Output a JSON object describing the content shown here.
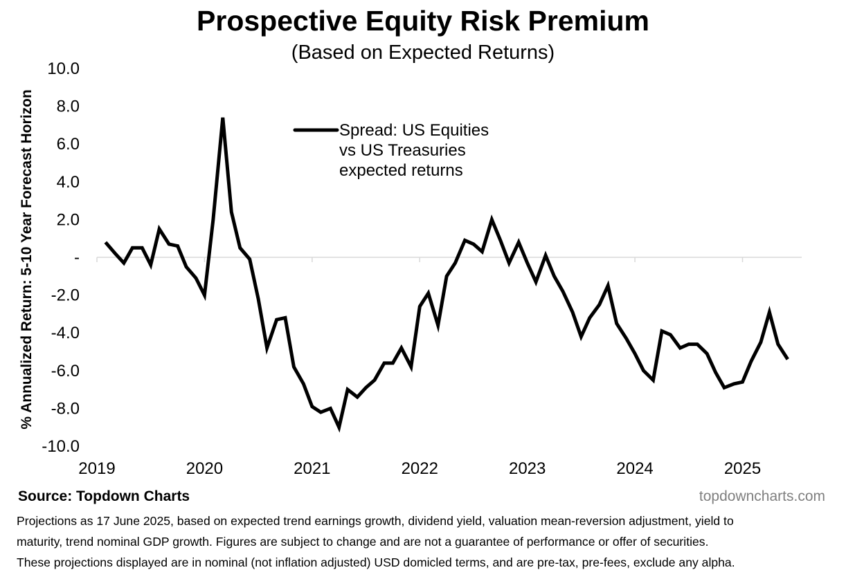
{
  "title": "Prospective Equity Risk Premium",
  "subtitle": "(Based on Expected Returns)",
  "source": "Source: Topdown Charts",
  "brand": "topdowncharts.com",
  "footnote": [
    "Projections as 17 June 2025, based on expected trend earnings growth, dividend yield, valuation mean-reversion adjustment, yield to",
    "maturity, trend nominal GDP growth.  Figures are subject to change and are not a guarantee of performance or offer of securities.",
    "These projections displayed are in nominal (not inflation adjusted) USD domicled terms, and are pre-tax, pre-fees, exclude any alpha."
  ],
  "colors": {
    "line": "#000000",
    "gridline": "#d9d9d9",
    "brand": "#7f7f7f"
  },
  "chart_data": {
    "type": "line",
    "title": "Prospective Equity Risk Premium",
    "subtitle": "(Based on Expected Returns)",
    "ylabel": "% Annualized Return: 5-10 Year Forecast Horizon",
    "xlabel": "",
    "ylim": [
      -10,
      10
    ],
    "xlim": [
      2019,
      2025.55
    ],
    "yticks": [
      10,
      8,
      6,
      4,
      2,
      0,
      -2,
      -4,
      -6,
      -8,
      -10
    ],
    "ytick_labels": [
      "10.0",
      "8.0",
      "6.0",
      "4.0",
      "2.0",
      "-",
      "-2.0",
      "-4.0",
      "-6.0",
      "-8.0",
      "-10.0"
    ],
    "xticks": [
      2019,
      2020,
      2021,
      2022,
      2023,
      2024,
      2025
    ],
    "xtick_labels": [
      "2019",
      "2020",
      "2021",
      "2022",
      "2023",
      "2024",
      "2025"
    ],
    "legend_position": "top-center",
    "grid": "zero line only",
    "series": [
      {
        "name": "Spread: US Equities\nvs US Treasuries\nexpected returns",
        "x": [
          2019.08,
          2019.17,
          2019.25,
          2019.33,
          2019.42,
          2019.5,
          2019.58,
          2019.67,
          2019.75,
          2019.83,
          2019.92,
          2020.0,
          2020.08,
          2020.17,
          2020.25,
          2020.33,
          2020.42,
          2020.5,
          2020.58,
          2020.67,
          2020.75,
          2020.83,
          2020.92,
          2021.0,
          2021.08,
          2021.17,
          2021.25,
          2021.33,
          2021.42,
          2021.5,
          2021.58,
          2021.67,
          2021.75,
          2021.83,
          2021.92,
          2022.0,
          2022.08,
          2022.17,
          2022.25,
          2022.33,
          2022.42,
          2022.5,
          2022.58,
          2022.67,
          2022.75,
          2022.83,
          2022.92,
          2023.0,
          2023.08,
          2023.17,
          2023.25,
          2023.33,
          2023.42,
          2023.5,
          2023.58,
          2023.67,
          2023.75,
          2023.83,
          2023.92,
          2024.0,
          2024.08,
          2024.17,
          2024.25,
          2024.33,
          2024.42,
          2024.5,
          2024.58,
          2024.67,
          2024.75,
          2024.83,
          2024.92,
          2025.0,
          2025.08,
          2025.17,
          2025.25,
          2025.33,
          2025.42
        ],
        "values": [
          0.8,
          0.2,
          -0.3,
          0.5,
          0.5,
          -0.4,
          1.5,
          0.7,
          0.6,
          -0.5,
          -1.1,
          -2.0,
          2.0,
          7.4,
          2.4,
          0.5,
          -0.1,
          -2.2,
          -4.8,
          -3.3,
          -3.2,
          -5.8,
          -6.7,
          -7.9,
          -8.2,
          -8.0,
          -9.0,
          -7.0,
          -7.4,
          -6.9,
          -6.5,
          -5.6,
          -5.6,
          -4.8,
          -5.8,
          -2.6,
          -1.9,
          -3.6,
          -1.0,
          -0.3,
          0.9,
          0.7,
          0.3,
          2.0,
          0.9,
          -0.3,
          0.8,
          -0.3,
          -1.3,
          0.1,
          -1.0,
          -1.8,
          -2.9,
          -4.2,
          -3.2,
          -2.5,
          -1.5,
          -3.5,
          -4.3,
          -5.1,
          -6.0,
          -6.5,
          -3.9,
          -4.1,
          -4.8,
          -4.6,
          -4.6,
          -5.1,
          -6.1,
          -6.9,
          -6.7,
          -6.6,
          -5.5,
          -4.5,
          -2.9,
          -4.6,
          -5.4
        ]
      }
    ]
  }
}
